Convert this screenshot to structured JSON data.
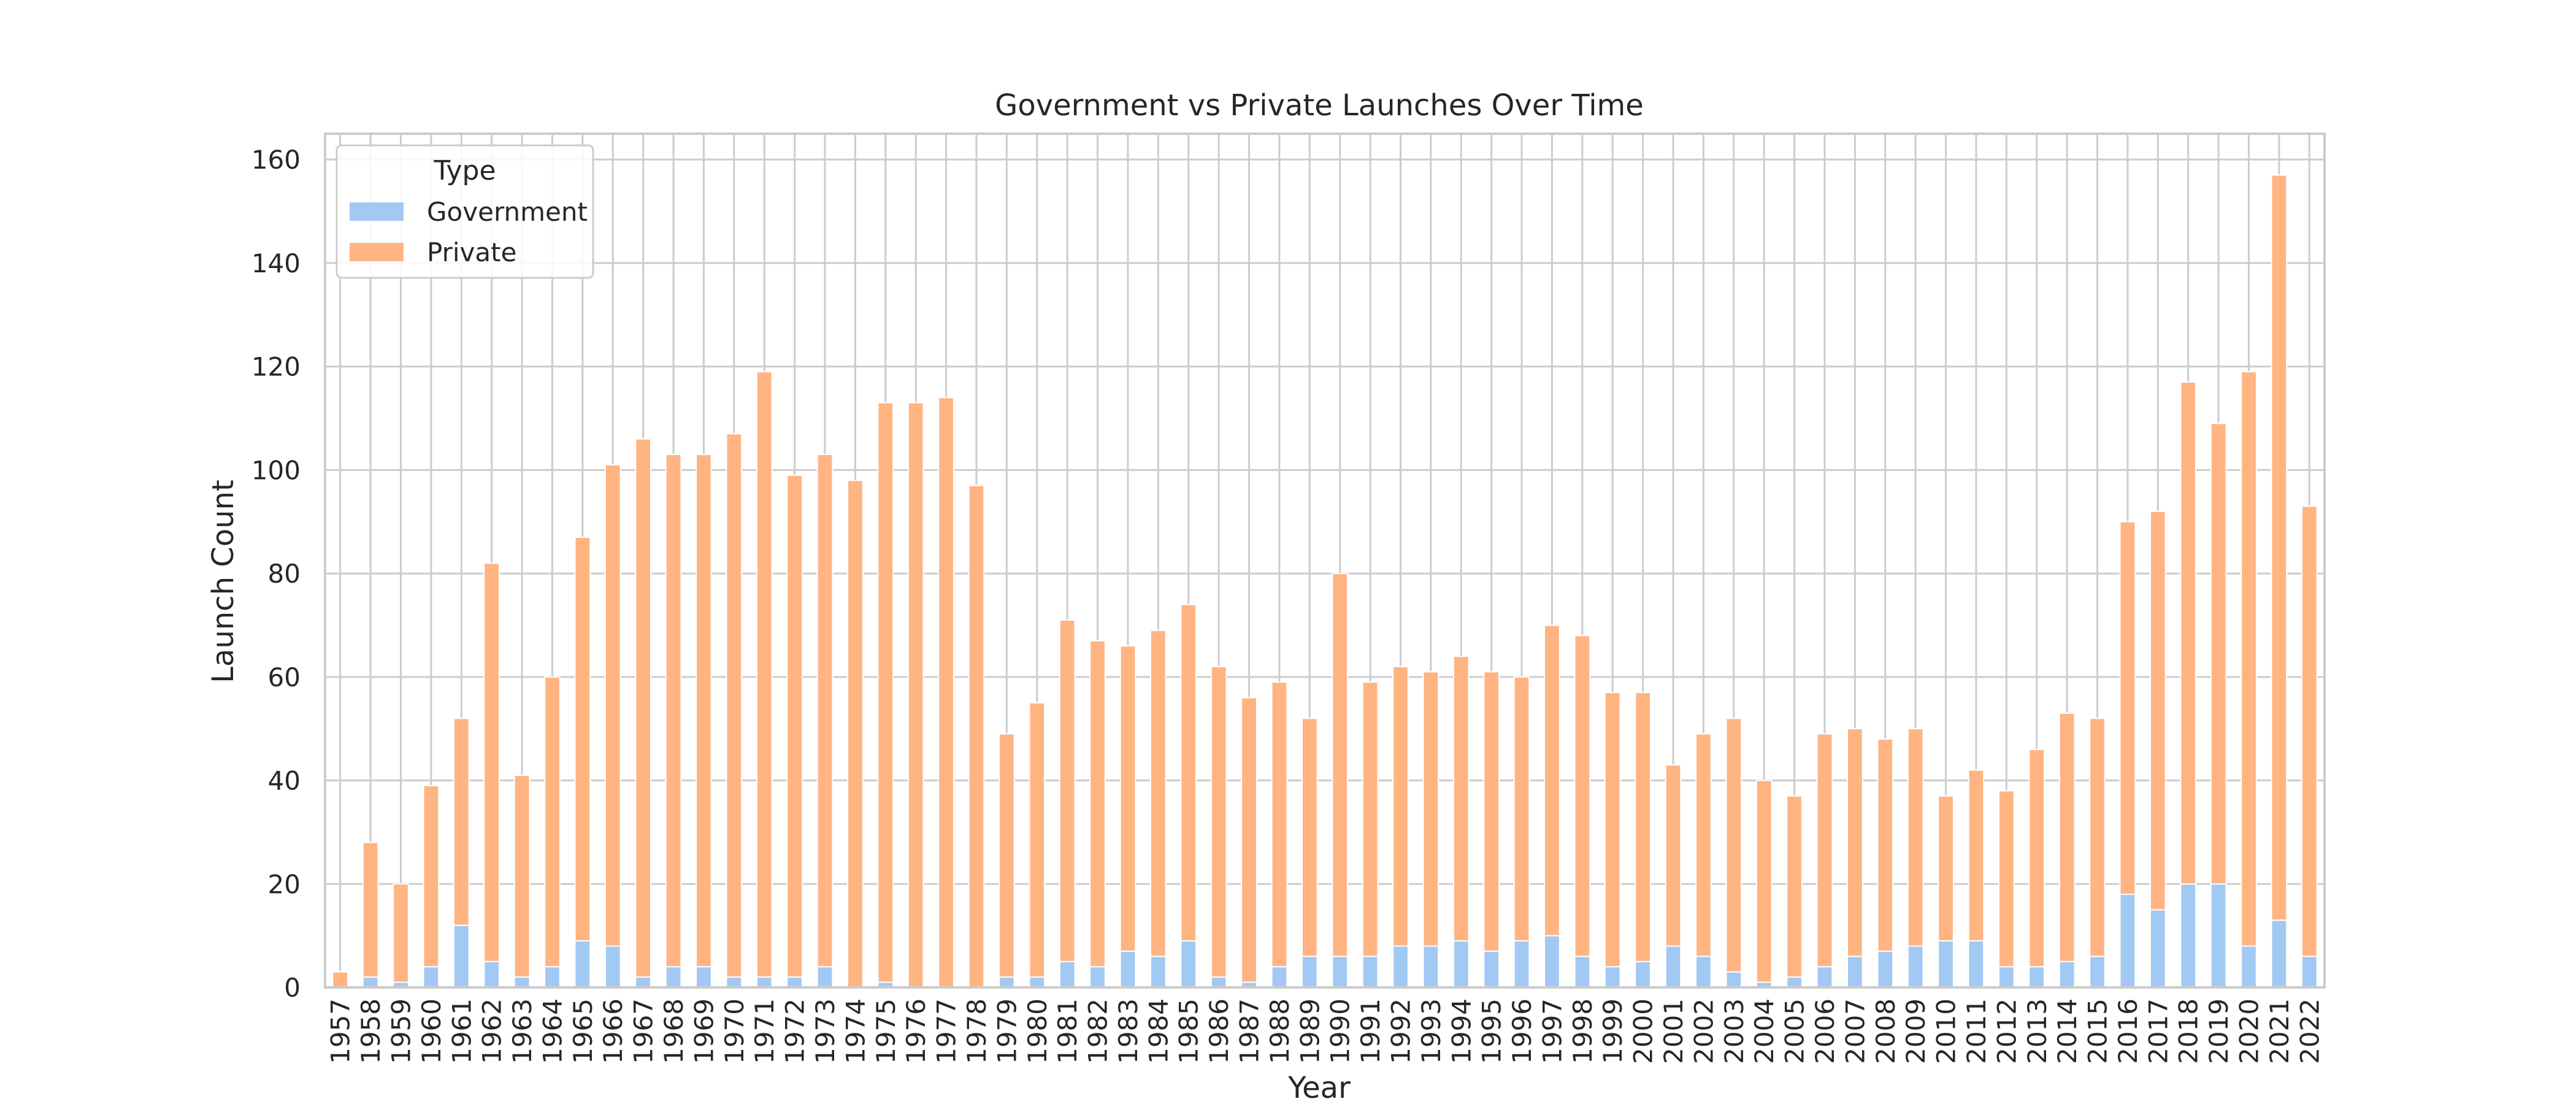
{
  "chart_data": {
    "type": "bar",
    "stacked": true,
    "title": "Government vs Private Launches Over Time",
    "xlabel": "Year",
    "ylabel": "Launch Count",
    "ylim": [
      0,
      165
    ],
    "yticks": [
      0,
      20,
      40,
      60,
      80,
      100,
      120,
      140,
      160
    ],
    "grid": true,
    "legend": {
      "title": "Type",
      "placement": "top-left"
    },
    "categories": [
      "1957",
      "1958",
      "1959",
      "1960",
      "1961",
      "1962",
      "1963",
      "1964",
      "1965",
      "1966",
      "1967",
      "1968",
      "1969",
      "1970",
      "1971",
      "1972",
      "1973",
      "1974",
      "1975",
      "1976",
      "1977",
      "1978",
      "1979",
      "1980",
      "1981",
      "1982",
      "1983",
      "1984",
      "1985",
      "1986",
      "1987",
      "1988",
      "1989",
      "1990",
      "1991",
      "1992",
      "1993",
      "1994",
      "1995",
      "1996",
      "1997",
      "1998",
      "1999",
      "2000",
      "2001",
      "2002",
      "2003",
      "2004",
      "2005",
      "2006",
      "2007",
      "2008",
      "2009",
      "2010",
      "2011",
      "2012",
      "2013",
      "2014",
      "2015",
      "2016",
      "2017",
      "2018",
      "2019",
      "2020",
      "2021",
      "2022"
    ],
    "series": [
      {
        "name": "Government",
        "color": "#a1c9f4",
        "values": [
          0,
          2,
          1,
          4,
          12,
          5,
          2,
          4,
          9,
          8,
          2,
          4,
          4,
          2,
          2,
          2,
          4,
          0,
          1,
          0,
          0,
          0,
          2,
          2,
          5,
          4,
          7,
          6,
          9,
          2,
          1,
          4,
          6,
          6,
          6,
          8,
          8,
          9,
          7,
          9,
          10,
          6,
          4,
          5,
          8,
          6,
          3,
          1,
          2,
          4,
          6,
          7,
          8,
          9,
          9,
          4,
          4,
          5,
          6,
          18,
          15,
          20,
          20,
          8,
          13,
          6
        ]
      },
      {
        "name": "Private",
        "color": "#ffb482",
        "values": [
          3,
          26,
          19,
          35,
          40,
          77,
          39,
          56,
          78,
          93,
          104,
          99,
          99,
          105,
          117,
          97,
          99,
          98,
          112,
          113,
          114,
          97,
          47,
          53,
          66,
          63,
          59,
          63,
          65,
          60,
          55,
          55,
          46,
          74,
          53,
          54,
          53,
          55,
          54,
          51,
          60,
          62,
          53,
          52,
          35,
          43,
          49,
          39,
          35,
          45,
          44,
          41,
          42,
          28,
          33,
          34,
          42,
          48,
          46,
          72,
          77,
          97,
          89,
          111,
          144,
          87
        ]
      }
    ]
  }
}
